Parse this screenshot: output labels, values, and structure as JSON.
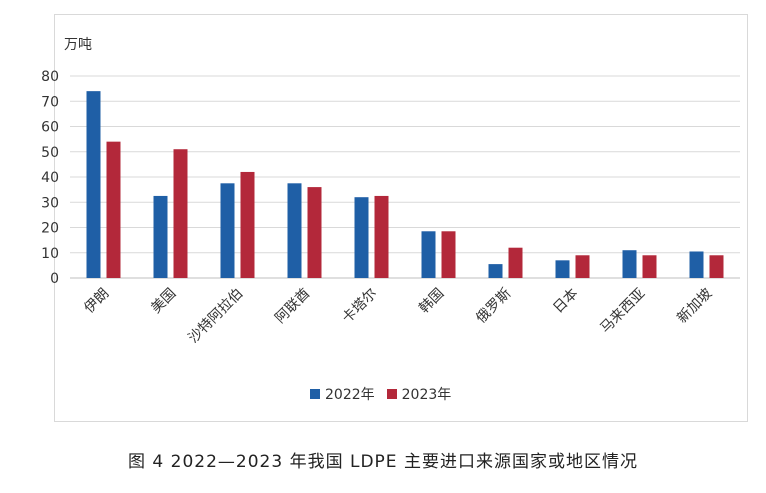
{
  "figure": {
    "caption": "图 4  2022—2023 年我国 LDPE 主要进口来源国家或地区情况"
  },
  "chart_data": {
    "type": "bar",
    "ylabel": "万吨",
    "ylim": [
      0,
      80
    ],
    "yticks": [
      0,
      10,
      20,
      30,
      40,
      50,
      60,
      70,
      80
    ],
    "grid": true,
    "legend_position": "bottom",
    "categories": [
      "伊朗",
      "美国",
      "沙特阿拉伯",
      "阿联酋",
      "卡塔尔",
      "韩国",
      "俄罗斯",
      "日本",
      "马来西亚",
      "新加坡"
    ],
    "series": [
      {
        "name": "2022年",
        "color": "#1f5fa6",
        "values": [
          74,
          32.5,
          37.5,
          37.5,
          32,
          18.5,
          5.5,
          7,
          11,
          10.5
        ]
      },
      {
        "name": "2023年",
        "color": "#b3283a",
        "values": [
          54,
          51,
          42,
          36,
          32.5,
          18.5,
          12,
          9,
          9,
          9
        ]
      }
    ]
  }
}
